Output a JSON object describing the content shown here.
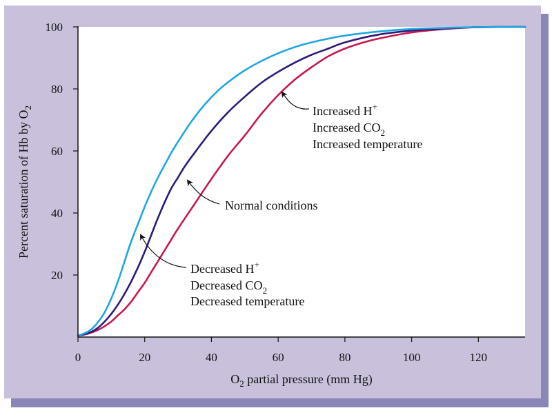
{
  "colors": {
    "frame_background": "#c9c0dc",
    "frame_shadow": "#8b86b8",
    "plot_background": "#ffffff",
    "left_shift_curve": "#1ea6e0",
    "normal_curve": "#2e1a78",
    "right_shift_curve": "#c8174e"
  },
  "annotations": {
    "right": {
      "line1_text": "Increased H",
      "line1_sup": "+",
      "line2_text": "Increased CO",
      "line2_sub": "2",
      "line3_text": "Increased temperature"
    },
    "normal": {
      "text": "Normal conditions"
    },
    "left": {
      "line1_text": "Decreased H",
      "line1_sup": "+",
      "line2_text": "Decreased CO",
      "line2_sub": "2",
      "line3_text": "Decreased temperature"
    }
  },
  "chart_data": {
    "type": "line",
    "title": "",
    "xlabel": {
      "prefix": "O",
      "sub": "2",
      "rest": " partial pressure (mm Hg)"
    },
    "ylabel": {
      "main": "Percent saturation of Hb by O",
      "sub": "2"
    },
    "xlim": [
      0,
      134
    ],
    "ylim": [
      0,
      100
    ],
    "xticks": [
      0,
      20,
      40,
      60,
      80,
      100,
      120
    ],
    "yticks": [
      20,
      40,
      60,
      80,
      100
    ],
    "grid": false,
    "series": [
      {
        "key": "left_shift",
        "color": "#1ea6e0",
        "x": [
          0,
          2,
          4,
          6,
          8,
          10,
          12,
          14,
          16,
          18,
          20,
          22,
          24,
          26,
          28,
          30,
          34,
          38,
          42,
          46,
          50,
          55,
          60,
          65,
          70,
          75,
          80,
          90,
          100,
          110,
          120,
          134
        ],
        "y": [
          0.5,
          1.2,
          2.5,
          4.8,
          8.0,
          12.5,
          18.0,
          24.5,
          31.0,
          36.5,
          42.0,
          47.0,
          51.5,
          55.5,
          59.5,
          63.0,
          69.5,
          75.0,
          79.5,
          83.0,
          86.0,
          89.0,
          91.5,
          93.5,
          95.0,
          96.2,
          97.2,
          98.5,
          99.3,
          99.7,
          99.9,
          100
        ]
      },
      {
        "key": "normal",
        "color": "#2e1a78",
        "x": [
          0,
          2,
          4,
          6,
          8,
          10,
          12,
          14,
          16,
          18,
          20,
          22,
          24,
          26,
          28,
          30,
          32,
          35,
          40,
          45,
          50,
          55,
          60,
          65,
          70,
          75,
          80,
          90,
          100,
          110,
          120,
          134
        ],
        "y": [
          0.5,
          0.9,
          1.7,
          3.0,
          5.0,
          7.5,
          10.5,
          14.0,
          18.0,
          22.5,
          27.5,
          33.0,
          38.5,
          43.5,
          48.0,
          51.5,
          55.0,
          59.5,
          66.5,
          72.5,
          77.5,
          82.0,
          85.5,
          88.5,
          91.0,
          93.0,
          95.0,
          97.5,
          98.8,
          99.5,
          99.9,
          100
        ]
      },
      {
        "key": "right_shift",
        "color": "#c8174e",
        "x": [
          0,
          2,
          4,
          6,
          8,
          10,
          12,
          14,
          16,
          18,
          20,
          22,
          24,
          26,
          28,
          30,
          35,
          40,
          45,
          50,
          55,
          60,
          65,
          70,
          75,
          80,
          85,
          90,
          100,
          110,
          120,
          134
        ],
        "y": [
          0.5,
          0.8,
          1.4,
          2.3,
          3.5,
          5.0,
          7.0,
          9.0,
          11.5,
          14.5,
          17.5,
          21.0,
          24.5,
          28.0,
          31.5,
          35.0,
          43.0,
          51.0,
          58.5,
          65.0,
          72.0,
          78.0,
          83.0,
          87.0,
          90.5,
          93.0,
          94.8,
          96.2,
          98.2,
          99.3,
          99.9,
          100
        ]
      }
    ]
  }
}
